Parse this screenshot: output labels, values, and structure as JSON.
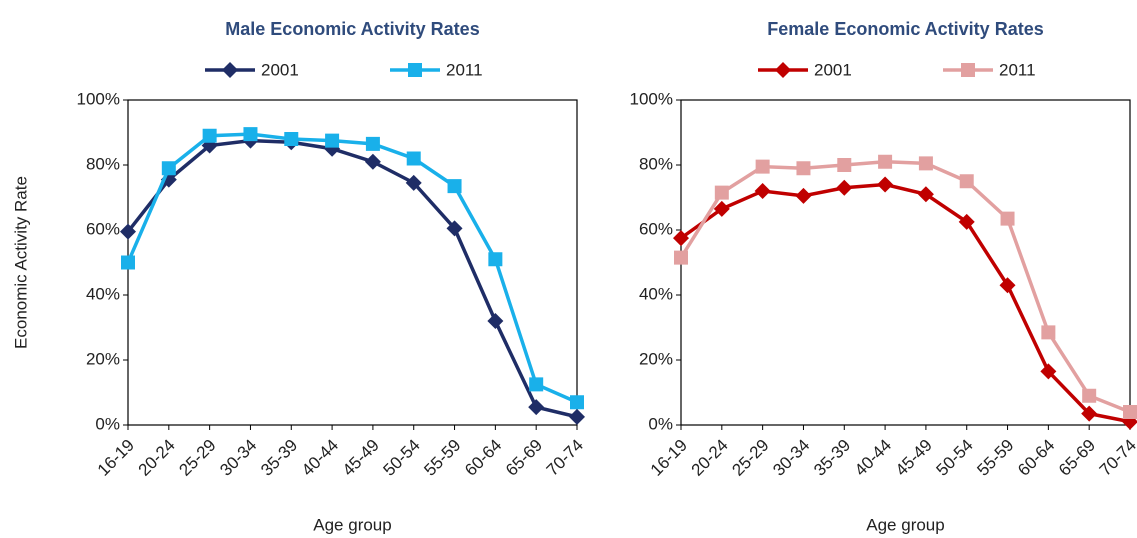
{
  "chart_data": [
    {
      "type": "line",
      "title": "Male Economic Activity Rates",
      "ylabel": "Economic Activity Rate",
      "xlabel": "Age group",
      "categories": [
        "16-19",
        "20-24",
        "25-29",
        "30-34",
        "35-39",
        "40-44",
        "45-49",
        "50-54",
        "55-59",
        "60-64",
        "65-69",
        "70-74"
      ],
      "series": [
        {
          "name": "2001",
          "color": "#1f2d66",
          "marker": "diamond",
          "values": [
            59.5,
            75.5,
            86,
            87.5,
            87,
            85,
            81,
            74.5,
            60.5,
            32,
            5.5,
            2.5
          ]
        },
        {
          "name": "2011",
          "color": "#19b0ea",
          "marker": "square",
          "values": [
            50,
            79,
            89,
            89.5,
            88,
            87.5,
            86.5,
            82,
            73.5,
            51,
            12.5,
            7
          ]
        }
      ],
      "ylim": [
        0,
        100
      ],
      "yticks": [
        {
          "value": 0,
          "label": "0%"
        },
        {
          "value": 20,
          "label": "20%"
        },
        {
          "value": 40,
          "label": "40%"
        },
        {
          "value": 60,
          "label": "60%"
        },
        {
          "value": 80,
          "label": "80%"
        },
        {
          "value": 100,
          "label": "100%"
        }
      ]
    },
    {
      "type": "line",
      "title": "Female Economic Activity Rates",
      "xlabel": "Age group",
      "categories": [
        "16-19",
        "20-24",
        "25-29",
        "30-34",
        "35-39",
        "40-44",
        "45-49",
        "50-54",
        "55-59",
        "60-64",
        "65-69",
        "70-74"
      ],
      "series": [
        {
          "name": "2001",
          "color": "#c00000",
          "marker": "diamond",
          "values": [
            57.5,
            66.5,
            72,
            70.5,
            73,
            74,
            71,
            62.5,
            43,
            16.5,
            3.5,
            1
          ]
        },
        {
          "name": "2011",
          "color": "#e2a0a0",
          "marker": "square",
          "values": [
            51.5,
            71.5,
            79.5,
            79,
            80,
            81,
            80.5,
            75,
            63.5,
            28.5,
            9,
            4
          ]
        }
      ],
      "ylim": [
        0,
        100
      ],
      "yticks": [
        {
          "value": 0,
          "label": "0%"
        },
        {
          "value": 20,
          "label": "20%"
        },
        {
          "value": 40,
          "label": "40%"
        },
        {
          "value": 60,
          "label": "60%"
        },
        {
          "value": 80,
          "label": "80%"
        },
        {
          "value": 100,
          "label": "100%"
        }
      ]
    }
  ]
}
